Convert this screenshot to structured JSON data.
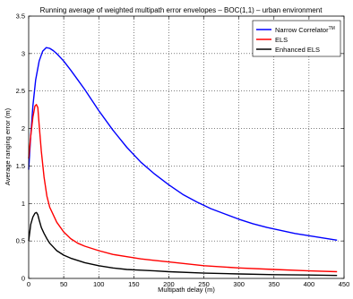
{
  "chart_data": {
    "type": "line",
    "title": "Running average of weighted multipath error envelopes – BOC(1,1) – urban environment",
    "xlabel": "Multipath delay (m)",
    "ylabel": "Average ranging error (m)",
    "xlim": [
      0,
      450
    ],
    "ylim": [
      0,
      3.5
    ],
    "xticks": [
      0,
      50,
      100,
      150,
      200,
      250,
      300,
      350,
      400,
      450
    ],
    "yticks": [
      0,
      0.5,
      1,
      1.5,
      2,
      2.5,
      3,
      3.5
    ],
    "xtick_labels": [
      "0",
      "50",
      "100",
      "150",
      "200",
      "250",
      "300",
      "350",
      "400",
      "450"
    ],
    "ytick_labels": [
      "0",
      "0.5",
      "1",
      "1.5",
      "2",
      "2.5",
      "3",
      "3.5"
    ],
    "grid": true,
    "legend_position": "top-right",
    "series": [
      {
        "name": "Narrow Correlator",
        "name_superscript": "TM",
        "color": "#0000ff",
        "x": [
          0,
          3,
          6,
          10,
          15,
          20,
          25,
          30,
          35,
          40,
          50,
          60,
          70,
          80,
          90,
          100,
          120,
          140,
          160,
          180,
          200,
          220,
          240,
          260,
          280,
          300,
          320,
          340,
          360,
          380,
          400,
          420,
          440
        ],
        "y": [
          1.45,
          1.9,
          2.3,
          2.65,
          2.9,
          3.03,
          3.08,
          3.07,
          3.04,
          3.0,
          2.9,
          2.78,
          2.65,
          2.52,
          2.38,
          2.24,
          1.98,
          1.75,
          1.55,
          1.39,
          1.25,
          1.12,
          1.02,
          0.93,
          0.86,
          0.79,
          0.73,
          0.68,
          0.64,
          0.6,
          0.57,
          0.54,
          0.51
        ]
      },
      {
        "name": "ELS",
        "color": "#ff0000",
        "x": [
          0,
          3,
          6,
          9,
          11,
          13,
          15,
          18,
          22,
          26,
          30,
          35,
          40,
          50,
          60,
          70,
          80,
          100,
          120,
          140,
          160,
          180,
          200,
          250,
          300,
          350,
          400,
          440
        ],
        "y": [
          1.6,
          1.9,
          2.15,
          2.3,
          2.32,
          2.28,
          2.05,
          1.7,
          1.35,
          1.1,
          0.95,
          0.85,
          0.75,
          0.62,
          0.53,
          0.47,
          0.43,
          0.37,
          0.32,
          0.29,
          0.26,
          0.24,
          0.22,
          0.17,
          0.14,
          0.12,
          0.1,
          0.09
        ]
      },
      {
        "name": "Enhanced ELS",
        "color": "#000000",
        "x": [
          0,
          3,
          6,
          9,
          11,
          13,
          15,
          18,
          22,
          26,
          30,
          35,
          40,
          50,
          60,
          70,
          80,
          100,
          120,
          140,
          160,
          180,
          200,
          250,
          300,
          350,
          400,
          440
        ],
        "y": [
          0.5,
          0.72,
          0.82,
          0.87,
          0.88,
          0.85,
          0.78,
          0.68,
          0.6,
          0.53,
          0.47,
          0.42,
          0.37,
          0.31,
          0.27,
          0.24,
          0.21,
          0.17,
          0.14,
          0.12,
          0.11,
          0.1,
          0.09,
          0.07,
          0.06,
          0.05,
          0.045,
          0.04
        ]
      }
    ]
  }
}
